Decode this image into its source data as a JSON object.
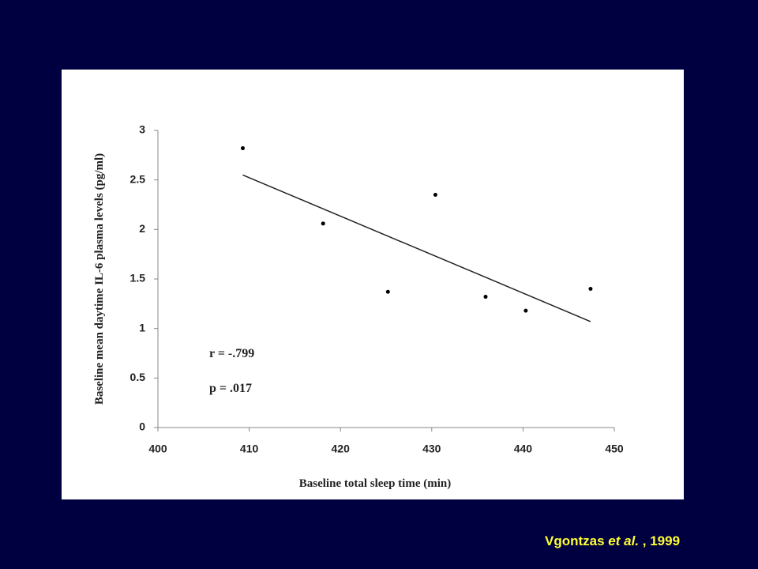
{
  "chart_data": {
    "type": "scatter",
    "x_label": "Baseline total sleep time (min)",
    "y_label": "Baseline mean daytime IL-6 plasma levels (pg/ml)",
    "x": [
      409.3,
      418.1,
      425.2,
      430.4,
      435.9,
      440.3,
      447.4
    ],
    "values": [
      2.82,
      2.06,
      1.37,
      2.35,
      1.32,
      1.18,
      1.4
    ],
    "color": "#000000",
    "trendline": {
      "x": [
        409.3,
        447.4
      ],
      "values": [
        2.55,
        1.07
      ],
      "color": "#222222"
    },
    "annotations": [
      "r = -.799",
      "p =  .017"
    ],
    "xlim": [
      400,
      450
    ],
    "xticks": [
      400,
      410,
      420,
      430,
      440,
      450
    ],
    "ylim": [
      0,
      3
    ],
    "yticks": [
      0,
      0.5,
      1,
      1.5,
      2,
      2.5,
      3
    ]
  },
  "footer": {
    "author": "Vgontzas",
    "etal": "et al.",
    "rest": ", 1999"
  }
}
